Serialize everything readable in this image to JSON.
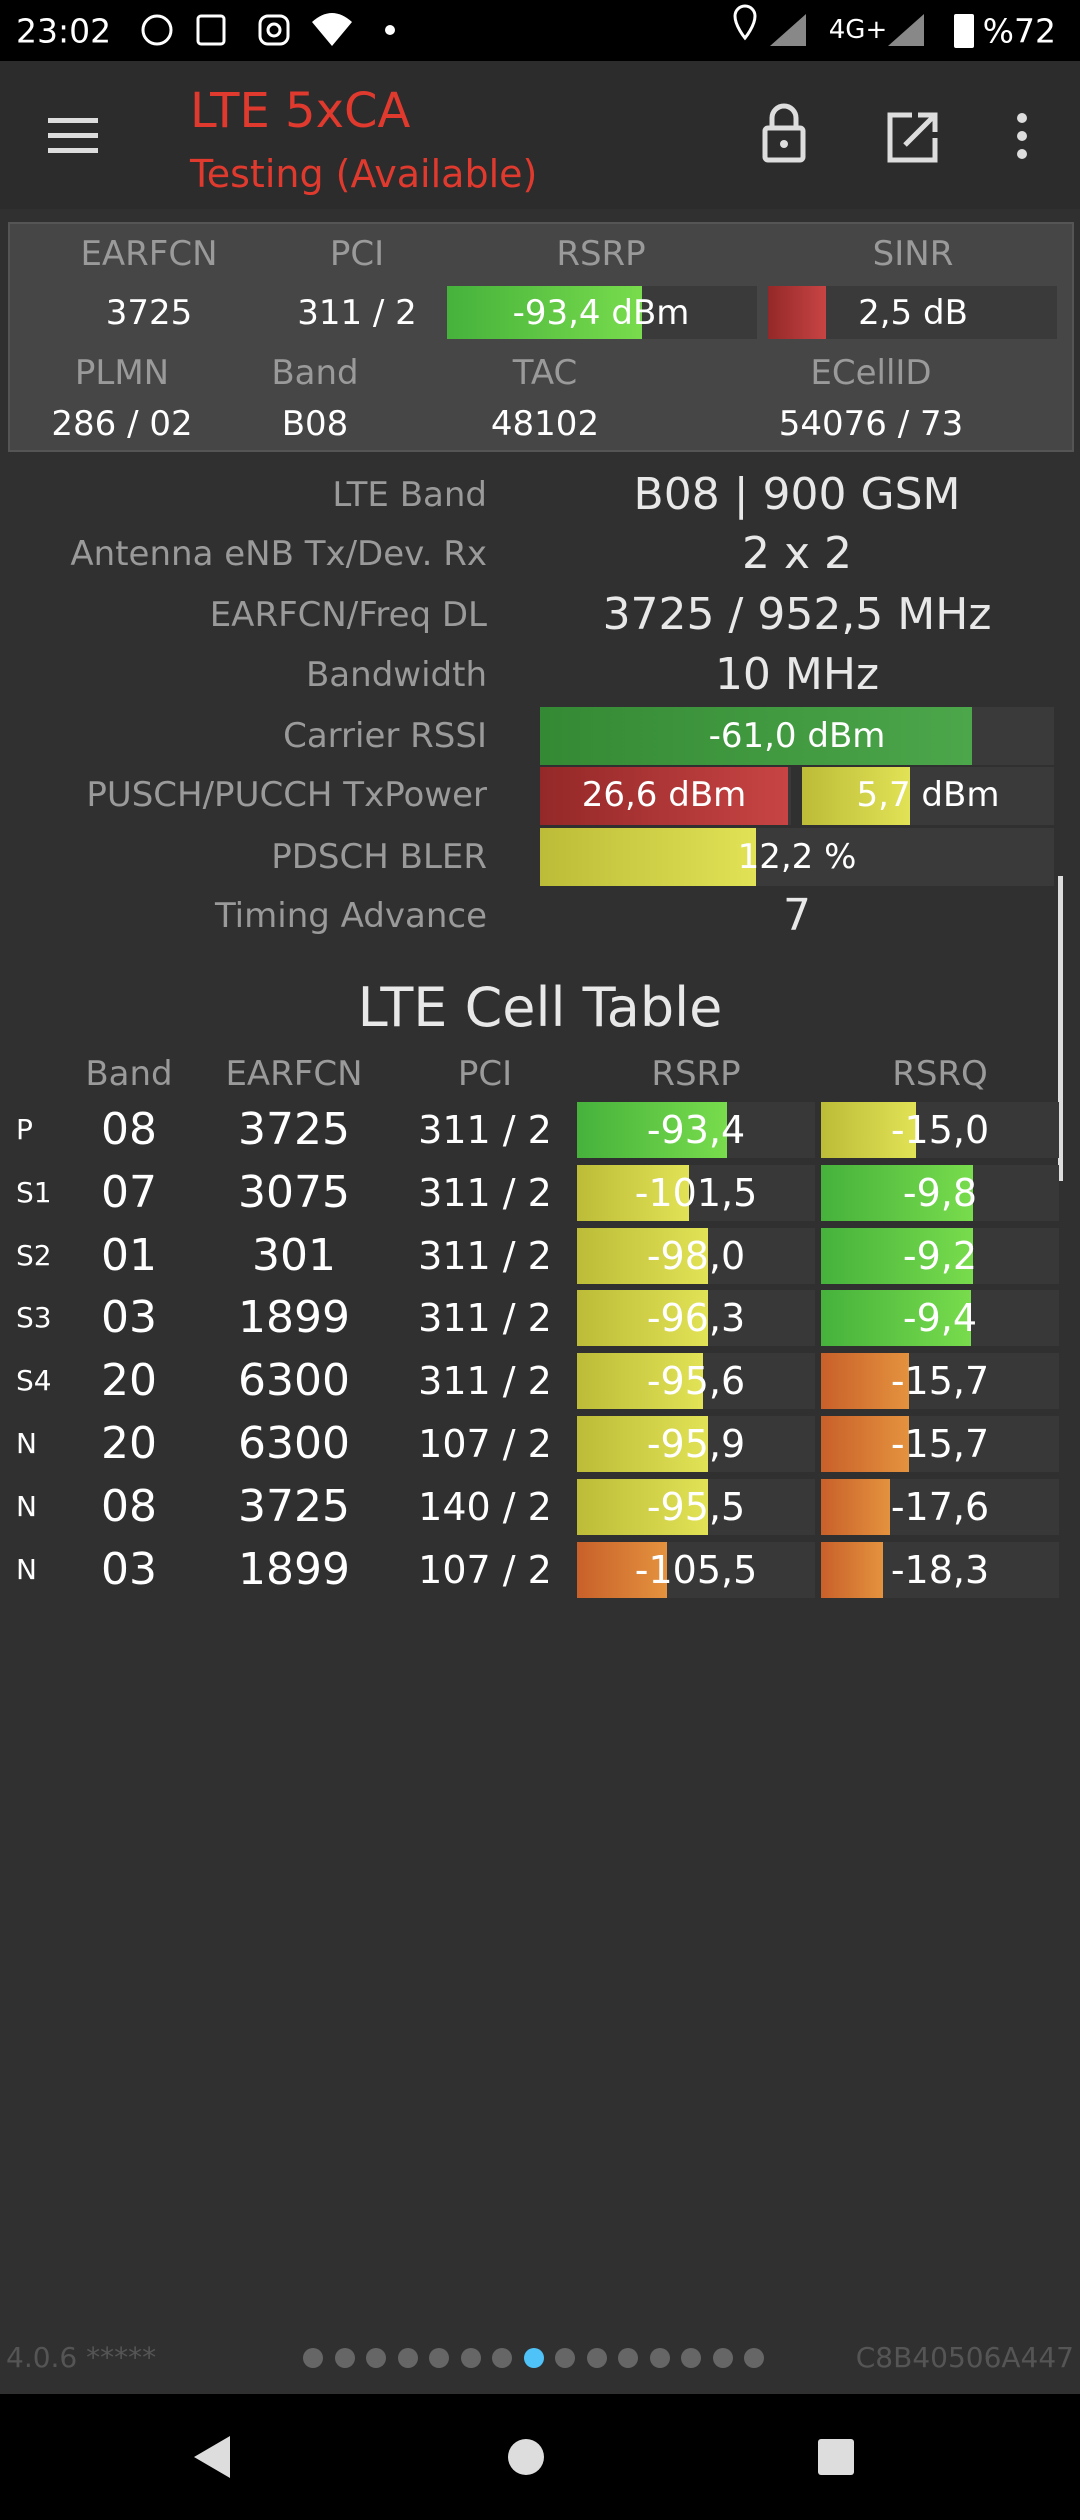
{
  "status_bar": {
    "time": "23:02",
    "network": "4G+",
    "battery": "%72"
  },
  "app_bar": {
    "title": "LTE 5xCA",
    "subtitle": "Testing (Available)"
  },
  "summary": {
    "items": [
      {
        "label": "EARFCN",
        "value": "3725"
      },
      {
        "label": "PCI",
        "value": "311 / 2"
      },
      {
        "label": "RSRP",
        "value": "-93,4 dBm"
      },
      {
        "label": "SINR",
        "value": "2,5 dB"
      },
      {
        "label": "PLMN",
        "value": "286 / 02"
      },
      {
        "label": "Band",
        "value": "B08"
      },
      {
        "label": "TAC",
        "value": "48102"
      },
      {
        "label": "ECellID",
        "value": "54076 / 73"
      }
    ]
  },
  "info": {
    "rows": [
      {
        "label": "LTE Band",
        "values": [
          "B08 | 900 GSM"
        ]
      },
      {
        "label": "Antenna eNB Tx/Dev. Rx",
        "values": [
          "2 x 2"
        ]
      },
      {
        "label": "EARFCN/Freq DL",
        "values": [
          "3725 / 952,5 MHz"
        ]
      },
      {
        "label": "Bandwidth",
        "values": [
          "10 MHz"
        ]
      },
      {
        "label": "Carrier RSSI",
        "values": [
          "-61,0 dBm"
        ]
      },
      {
        "label": "PUSCH/PUCCH TxPower",
        "values": [
          "26,6 dBm",
          "5,7 dBm"
        ]
      },
      {
        "label": "PDSCH BLER",
        "values": [
          "12,2 %"
        ]
      },
      {
        "label": "Timing Advance",
        "values": [
          "7"
        ]
      }
    ]
  },
  "cell_table": {
    "title": "LTE Cell Table",
    "headers": [
      "Band",
      "EARFCN",
      "PCI",
      "RSRP",
      "RSRQ"
    ],
    "rows": [
      [
        "P",
        "08",
        "3725",
        "311 / 2",
        "-93,4",
        "-15,0"
      ],
      [
        "S1",
        "07",
        "3075",
        "311 / 2",
        "-101,5",
        "-9,8"
      ],
      [
        "S2",
        "01",
        "301",
        "311 / 2",
        "-98,0",
        "-9,2"
      ],
      [
        "S3",
        "03",
        "1899",
        "311 / 2",
        "-96,3",
        "-9,4"
      ],
      [
        "S4",
        "20",
        "6300",
        "311 / 2",
        "-95,6",
        "-15,7"
      ],
      [
        "N",
        "20",
        "6300",
        "107 / 2",
        "-95,9",
        "-15,7"
      ],
      [
        "N",
        "08",
        "3725",
        "140 / 2",
        "-95,5",
        "-17,6"
      ],
      [
        "N",
        "03",
        "1899",
        "107 / 2",
        "-105,5",
        "-18,3"
      ]
    ]
  },
  "footer": {
    "version": "4.0.6 *****",
    "device_id": "C8B40506A447"
  }
}
